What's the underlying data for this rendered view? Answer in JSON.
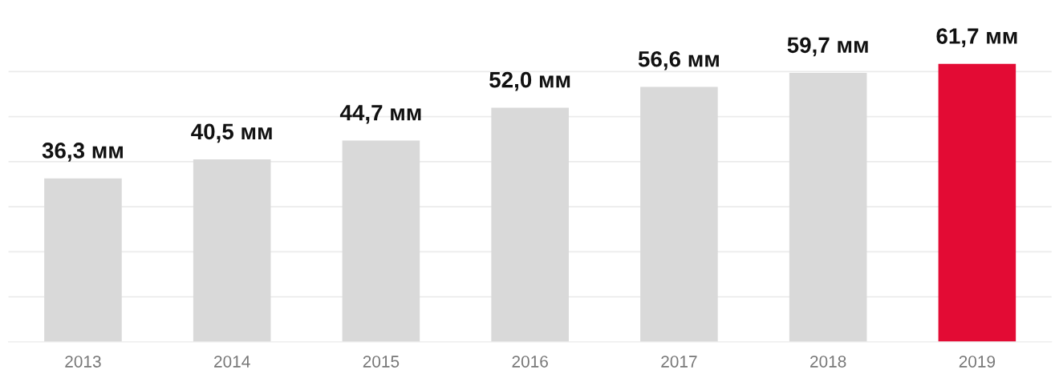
{
  "chart_data": {
    "type": "bar",
    "categories": [
      "2013",
      "2014",
      "2015",
      "2016",
      "2017",
      "2018",
      "2019"
    ],
    "values": [
      36.3,
      40.5,
      44.7,
      52.0,
      56.6,
      59.7,
      61.7
    ],
    "colors": [
      "#d9d9d9",
      "#d9d9d9",
      "#d9d9d9",
      "#d9d9d9",
      "#d9d9d9",
      "#d9d9d9",
      "#e30b34"
    ],
    "value_labels": [
      "36,3 мм",
      "40,5 мм",
      "44,7 мм",
      "52,0 мм",
      "56,6 мм",
      "59,7 мм",
      "61,7 мм"
    ],
    "yticks": [
      {
        "value": 10,
        "label": null
      },
      {
        "value": 20,
        "label": null
      },
      {
        "value": 30,
        "label": null
      },
      {
        "value": 40,
        "label": null
      },
      {
        "value": 50,
        "label": null
      },
      {
        "value": 60,
        "label": null
      }
    ],
    "grid": "y",
    "tick_labels": "x"
  }
}
